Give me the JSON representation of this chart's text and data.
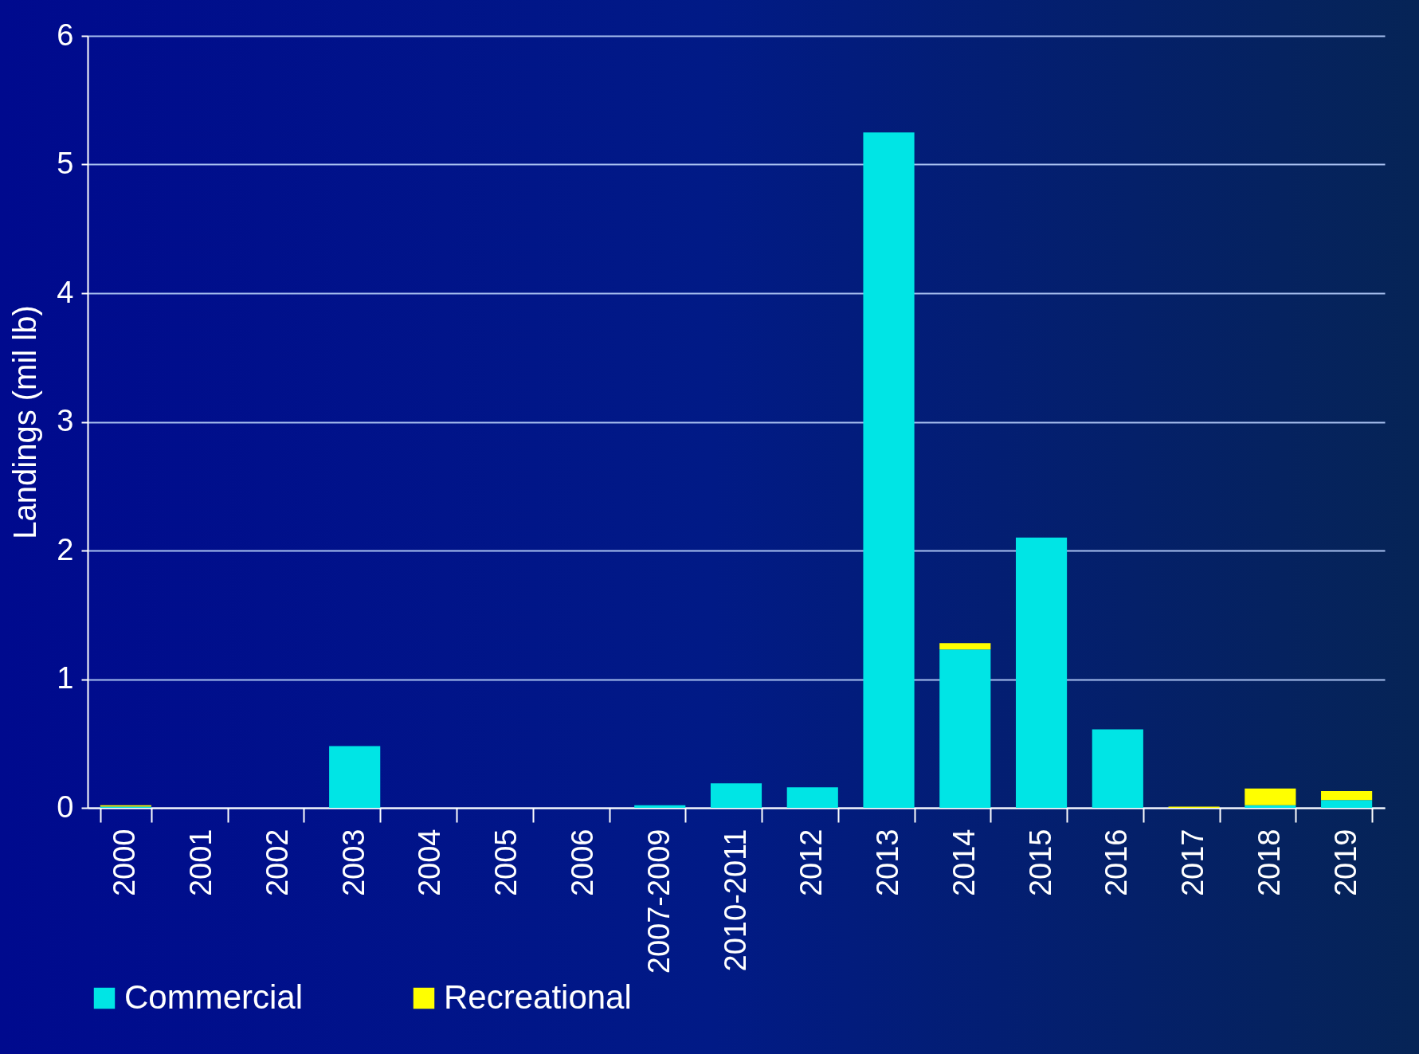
{
  "chart_data": {
    "type": "bar",
    "stacked": true,
    "ylabel": "Landings (mil lb)",
    "categories": [
      "2000",
      "2001",
      "2002",
      "2003",
      "2004",
      "2005",
      "2006",
      "2007-2009",
      "2010-2011",
      "2012",
      "2013",
      "2014",
      "2015",
      "2016",
      "2017",
      "2018",
      "2019"
    ],
    "series": [
      {
        "name": "Commercial",
        "color": "#00e5e5",
        "values": [
          0.01,
          0,
          0,
          0.48,
          0,
          0,
          0,
          0.02,
          0.19,
          0.16,
          5.25,
          1.23,
          2.1,
          0.61,
          0,
          0.02,
          0.06
        ]
      },
      {
        "name": "Recreational",
        "color": "#ffff00",
        "values": [
          0.01,
          0,
          0,
          0,
          0,
          0,
          0,
          0,
          0,
          0,
          0,
          0.05,
          0,
          0,
          0.01,
          0.13,
          0.07
        ]
      }
    ],
    "ylim": [
      0,
      6
    ],
    "yticks": [
      0,
      1,
      2,
      3,
      4,
      5,
      6
    ],
    "grid": "y",
    "legend": "bottom"
  }
}
